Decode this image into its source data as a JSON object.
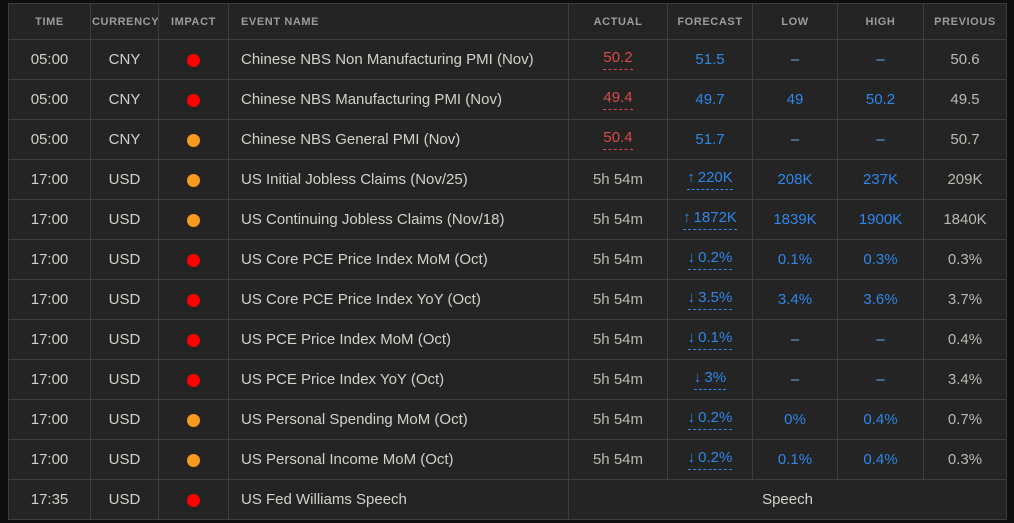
{
  "colors": {
    "red": "#d94a48",
    "blue": "#2e86e8",
    "dashblue": "#6fa8dc",
    "impact-high": "#fb0400",
    "impact-medium": "#f89a1f"
  },
  "table": {
    "columns": [
      {
        "label": "TIME"
      },
      {
        "label": "CURRENCY"
      },
      {
        "label": "IMPACT"
      },
      {
        "label": "EVENT NAME"
      },
      {
        "label": "ACTUAL"
      },
      {
        "label": "FORECAST"
      },
      {
        "label": "LOW"
      },
      {
        "label": "HIGH"
      },
      {
        "label": "PREVIOUS"
      }
    ],
    "rows": [
      {
        "time": "05:00",
        "currency": "CNY",
        "impact": "high",
        "event": "Chinese NBS Non Manufacturing PMI (Nov)",
        "actual": {
          "text": "50.2",
          "cls": "red-u"
        },
        "forecast": {
          "text": "51.5",
          "cls": "blue"
        },
        "low": {
          "text": "–",
          "cls": "dash"
        },
        "high": {
          "text": "–",
          "cls": "dash"
        },
        "previous": "50.6"
      },
      {
        "time": "05:00",
        "currency": "CNY",
        "impact": "high",
        "event": "Chinese NBS Manufacturing PMI (Nov)",
        "actual": {
          "text": "49.4",
          "cls": "red-u"
        },
        "forecast": {
          "text": "49.7",
          "cls": "blue"
        },
        "low": {
          "text": "49",
          "cls": "blue"
        },
        "high": {
          "text": "50.2",
          "cls": "blue"
        },
        "previous": "49.5"
      },
      {
        "time": "05:00",
        "currency": "CNY",
        "impact": "medium",
        "event": "Chinese NBS General PMI (Nov)",
        "actual": {
          "text": "50.4",
          "cls": "red-u"
        },
        "forecast": {
          "text": "51.7",
          "cls": "blue"
        },
        "low": {
          "text": "–",
          "cls": "dash"
        },
        "high": {
          "text": "–",
          "cls": "dash"
        },
        "previous": "50.7"
      },
      {
        "time": "17:00",
        "currency": "USD",
        "impact": "medium",
        "event": "US Initial Jobless Claims (Nov/25)",
        "actual": "5h 54m",
        "forecast": {
          "text": "220K",
          "cls": "blue-u",
          "arrow": "up"
        },
        "low": {
          "text": "208K",
          "cls": "blue"
        },
        "high": {
          "text": "237K",
          "cls": "blue"
        },
        "previous": "209K"
      },
      {
        "time": "17:00",
        "currency": "USD",
        "impact": "medium",
        "event": "US Continuing Jobless Claims (Nov/18)",
        "actual": "5h 54m",
        "forecast": {
          "text": "1872K",
          "cls": "blue-u",
          "arrow": "up"
        },
        "low": {
          "text": "1839K",
          "cls": "blue"
        },
        "high": {
          "text": "1900K",
          "cls": "blue"
        },
        "previous": "1840K"
      },
      {
        "time": "17:00",
        "currency": "USD",
        "impact": "high",
        "event": "US Core PCE Price Index MoM (Oct)",
        "actual": "5h 54m",
        "forecast": {
          "text": "0.2%",
          "cls": "blue-u",
          "arrow": "down"
        },
        "low": {
          "text": "0.1%",
          "cls": "blue"
        },
        "high": {
          "text": "0.3%",
          "cls": "blue"
        },
        "previous": "0.3%"
      },
      {
        "time": "17:00",
        "currency": "USD",
        "impact": "high",
        "event": "US Core PCE Price Index YoY (Oct)",
        "actual": "5h 54m",
        "forecast": {
          "text": "3.5%",
          "cls": "blue-u",
          "arrow": "down"
        },
        "low": {
          "text": "3.4%",
          "cls": "blue"
        },
        "high": {
          "text": "3.6%",
          "cls": "blue"
        },
        "previous": "3.7%"
      },
      {
        "time": "17:00",
        "currency": "USD",
        "impact": "high",
        "event": "US PCE Price Index MoM (Oct)",
        "actual": "5h 54m",
        "forecast": {
          "text": "0.1%",
          "cls": "blue-u",
          "arrow": "down"
        },
        "low": {
          "text": "–",
          "cls": "dash"
        },
        "high": {
          "text": "–",
          "cls": "dash"
        },
        "previous": "0.4%"
      },
      {
        "time": "17:00",
        "currency": "USD",
        "impact": "high",
        "event": "US PCE Price Index YoY (Oct)",
        "actual": "5h 54m",
        "forecast": {
          "text": "3%",
          "cls": "blue-u",
          "arrow": "down"
        },
        "low": {
          "text": "–",
          "cls": "dash"
        },
        "high": {
          "text": "–",
          "cls": "dash"
        },
        "previous": "3.4%"
      },
      {
        "time": "17:00",
        "currency": "USD",
        "impact": "medium",
        "event": "US Personal Spending MoM (Oct)",
        "actual": "5h 54m",
        "forecast": {
          "text": "0.2%",
          "cls": "blue-u",
          "arrow": "down"
        },
        "low": {
          "text": "0%",
          "cls": "blue"
        },
        "high": {
          "text": "0.4%",
          "cls": "blue"
        },
        "previous": "0.7%"
      },
      {
        "time": "17:00",
        "currency": "USD",
        "impact": "medium",
        "event": "US Personal Income MoM (Oct)",
        "actual": "5h 54m",
        "forecast": {
          "text": "0.2%",
          "cls": "blue-u",
          "arrow": "down"
        },
        "low": {
          "text": "0.1%",
          "cls": "blue"
        },
        "high": {
          "text": "0.4%",
          "cls": "blue"
        },
        "previous": "0.3%"
      },
      {
        "time": "17:35",
        "currency": "USD",
        "impact": "high",
        "event": "US Fed Williams Speech",
        "span": "Speech"
      }
    ]
  },
  "icons": {
    "arrow_up": "↑",
    "arrow_down": "↓"
  }
}
